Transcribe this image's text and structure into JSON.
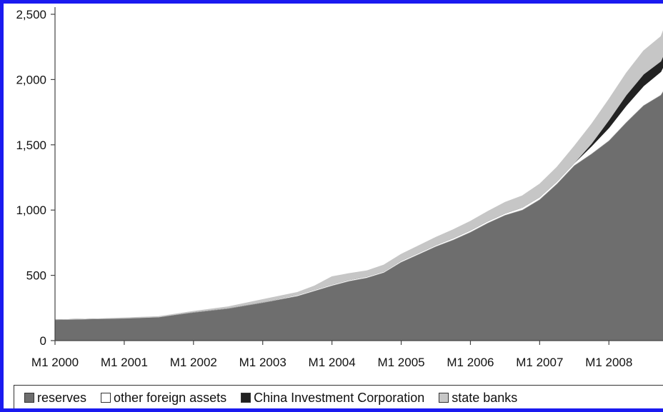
{
  "chart_data": {
    "type": "area",
    "stacked": true,
    "title": "",
    "xlabel": "",
    "ylabel": "",
    "ylim": [
      0,
      2500
    ],
    "yticks": [
      0,
      500,
      1000,
      1500,
      2000,
      2500
    ],
    "ytick_labels": [
      "0",
      "500",
      "1,000",
      "1,500",
      "2,000",
      "2,500"
    ],
    "xlim": [
      2000.0,
      2008.833
    ],
    "xticks": [
      2000,
      2001,
      2002,
      2003,
      2004,
      2005,
      2006,
      2007,
      2008
    ],
    "xtick_labels": [
      "M1 2000",
      "M1 2001",
      "M1 2002",
      "M1 2003",
      "M1 2004",
      "M1 2005",
      "M1 2006",
      "M1 2007",
      "M1 2008"
    ],
    "grid": false,
    "legend_position": "bottom",
    "x": [
      2000.0,
      2000.5,
      2001.0,
      2001.5,
      2002.0,
      2002.5,
      2003.0,
      2003.5,
      2003.75,
      2004.0,
      2004.25,
      2004.5,
      2004.75,
      2005.0,
      2005.25,
      2005.5,
      2005.75,
      2006.0,
      2006.25,
      2006.5,
      2006.75,
      2007.0,
      2007.25,
      2007.5,
      2007.75,
      2008.0,
      2008.25,
      2008.5,
      2008.75,
      2008.833
    ],
    "series": [
      {
        "name": "reserves",
        "color": "#6e6e6e",
        "values": [
          160,
          165,
          170,
          180,
          215,
          245,
          290,
          340,
          380,
          420,
          455,
          480,
          520,
          600,
          660,
          720,
          770,
          830,
          900,
          960,
          1000,
          1080,
          1200,
          1340,
          1430,
          1530,
          1670,
          1800,
          1880,
          1950
        ]
      },
      {
        "name": "other foreign assets",
        "color": "#ffffff",
        "values": [
          0,
          0,
          0,
          0,
          5,
          5,
          5,
          10,
          10,
          10,
          10,
          10,
          10,
          12,
          12,
          12,
          15,
          15,
          15,
          15,
          20,
          20,
          20,
          20,
          60,
          100,
          130,
          150,
          180,
          200
        ]
      },
      {
        "name": "China Investment Corporation",
        "color": "#222222",
        "values": [
          0,
          0,
          0,
          0,
          0,
          0,
          0,
          0,
          0,
          0,
          0,
          0,
          0,
          0,
          0,
          0,
          0,
          0,
          0,
          0,
          0,
          0,
          0,
          0,
          20,
          60,
          80,
          90,
          80,
          90
        ]
      },
      {
        "name": "state banks",
        "color": "#c6c6c6",
        "values": [
          0,
          0,
          5,
          5,
          5,
          10,
          20,
          20,
          30,
          60,
          50,
          45,
          50,
          50,
          55,
          60,
          65,
          70,
          75,
          85,
          90,
          100,
          110,
          130,
          150,
          160,
          170,
          180,
          190,
          200
        ]
      }
    ]
  }
}
